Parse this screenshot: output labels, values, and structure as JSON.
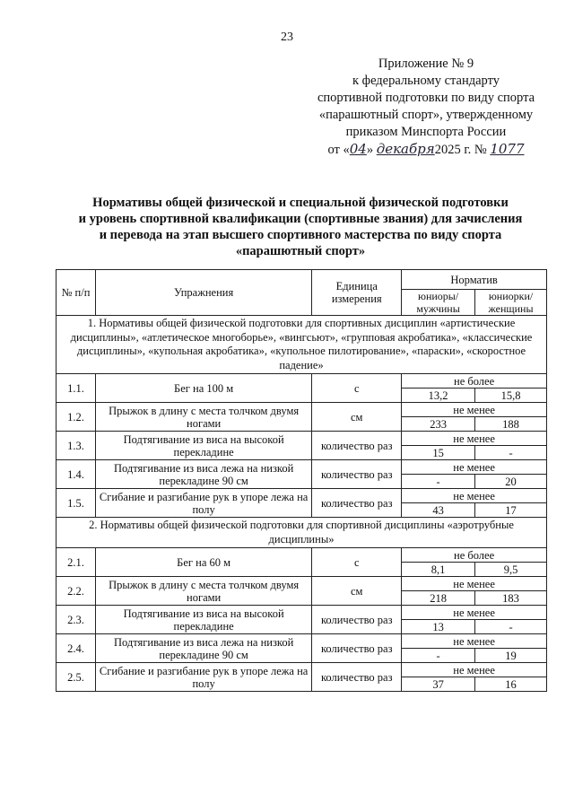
{
  "page_number": "23",
  "appendix": {
    "line1": "Приложение № 9",
    "line2": "к федеральному стандарту",
    "line3": "спортивной подготовки по виду спорта",
    "line4": "«парашютный спорт», утвержденному",
    "line5": "приказом Минспорта России",
    "date_prefix": "от «",
    "day": "04",
    "mid": "»",
    "month": "декабря",
    "year": "2025 г. №",
    "number": "1077"
  },
  "title": [
    "Нормативы общей физической и специальной физической подготовки",
    "и уровень спортивной квалификации (спортивные звания) для зачисления",
    "и перевода на этап высшего спортивного мастерства по виду спорта",
    "«парашютный спорт»"
  ],
  "table": {
    "headers": {
      "num": "№ п/п",
      "exercise": "Упражнения",
      "unit": "Единица измерения",
      "norm": "Норматив",
      "men": "юниоры/ мужчины",
      "women": "юниорки/ женщины"
    },
    "sections": [
      {
        "title": "1. Нормативы общей физической подготовки для спортивных дисциплин «артистические дисциплины», «атлетическое многоборье», «вингсьют», «групповая акробатика», «классические дисциплины», «купольная акробатика», «купольное пилотирование», «параски», «скоростное падение»",
        "rows": [
          {
            "num": "1.1.",
            "exercise": "Бег на 100 м",
            "unit": "с",
            "cond": "не более",
            "men": "13,2",
            "women": "15,8"
          },
          {
            "num": "1.2.",
            "exercise": "Прыжок в длину с места толчком двумя ногами",
            "unit": "см",
            "cond": "не менее",
            "men": "233",
            "women": "188"
          },
          {
            "num": "1.3.",
            "exercise": "Подтягивание из виса на высокой перекладине",
            "unit": "количество раз",
            "cond": "не менее",
            "men": "15",
            "women": "-"
          },
          {
            "num": "1.4.",
            "exercise": "Подтягивание из виса лежа на низкой перекладине 90 см",
            "unit": "количество раз",
            "cond": "не менее",
            "men": "-",
            "women": "20"
          },
          {
            "num": "1.5.",
            "exercise": "Сгибание и разгибание рук в упоре лежа на полу",
            "unit": "количество раз",
            "cond": "не менее",
            "men": "43",
            "women": "17"
          }
        ]
      },
      {
        "title": "2. Нормативы общей физической подготовки для спортивной дисциплины «аэротрубные дисциплины»",
        "rows": [
          {
            "num": "2.1.",
            "exercise": "Бег на 60 м",
            "unit": "с",
            "cond": "не более",
            "men": "8,1",
            "women": "9,5"
          },
          {
            "num": "2.2.",
            "exercise": "Прыжок в длину с места толчком двумя ногами",
            "unit": "см",
            "cond": "не менее",
            "men": "218",
            "women": "183"
          },
          {
            "num": "2.3.",
            "exercise": "Подтягивание из виса на высокой перекладине",
            "unit": "количество раз",
            "cond": "не менее",
            "men": "13",
            "women": "-"
          },
          {
            "num": "2.4.",
            "exercise": "Подтягивание из виса лежа на низкой перекладине 90 см",
            "unit": "количество раз",
            "cond": "не менее",
            "men": "-",
            "women": "19"
          },
          {
            "num": "2.5.",
            "exercise": "Сгибание и разгибание рук в упоре лежа на полу",
            "unit": "количество раз",
            "cond": "не менее",
            "men": "37",
            "women": "16"
          }
        ]
      }
    ]
  }
}
